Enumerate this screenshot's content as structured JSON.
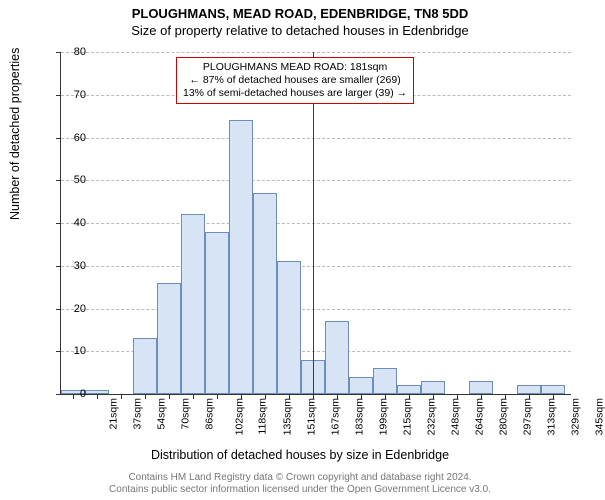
{
  "title_main": "PLOUGHMANS, MEAD ROAD, EDENBRIDGE, TN8 5DD",
  "title_sub": "Size of property relative to detached houses in Edenbridge",
  "y_axis_label": "Number of detached properties",
  "x_axis_label": "Distribution of detached houses by size in Edenbridge",
  "attribution_line1": "Contains HM Land Registry data © Crown copyright and database right 2024.",
  "attribution_line2": "Contains public sector information licensed under the Open Government Licence v3.0.",
  "annotation": {
    "line1": "PLOUGHMANS MEAD ROAD: 181sqm",
    "line2": "← 87% of detached houses are smaller (269)",
    "line3": "13% of semi-detached houses are larger (39) →",
    "border_color": "#cc0000"
  },
  "reference_line": {
    "x_value": 181,
    "color": "#cc0000"
  },
  "chart": {
    "type": "histogram",
    "x_min": 13,
    "x_max": 353,
    "y_min": 0,
    "y_max": 80,
    "y_tick_step": 10,
    "bar_fill": "#d6e4f5",
    "bar_border": "#6a8fbf",
    "grid_color": "#bbbbbb",
    "background_color": "#ffffff",
    "bin_width": 16,
    "bins": [
      {
        "start": 13,
        "label": "21sqm",
        "value": 1
      },
      {
        "start": 29,
        "label": "37sqm",
        "value": 1
      },
      {
        "start": 45,
        "label": "54sqm",
        "value": 0
      },
      {
        "start": 61,
        "label": "70sqm",
        "value": 13
      },
      {
        "start": 77,
        "label": "86sqm",
        "value": 26
      },
      {
        "start": 93,
        "label": "102sqm",
        "value": 42
      },
      {
        "start": 109,
        "label": "118sqm",
        "value": 38
      },
      {
        "start": 125,
        "label": "135sqm",
        "value": 64
      },
      {
        "start": 141,
        "label": "151sqm",
        "value": 47
      },
      {
        "start": 157,
        "label": "167sqm",
        "value": 31
      },
      {
        "start": 173,
        "label": "183sqm",
        "value": 8
      },
      {
        "start": 189,
        "label": "199sqm",
        "value": 17
      },
      {
        "start": 205,
        "label": "215sqm",
        "value": 4
      },
      {
        "start": 221,
        "label": "232sqm",
        "value": 6
      },
      {
        "start": 237,
        "label": "248sqm",
        "value": 2
      },
      {
        "start": 253,
        "label": "264sqm",
        "value": 3
      },
      {
        "start": 269,
        "label": "280sqm",
        "value": 0
      },
      {
        "start": 285,
        "label": "297sqm",
        "value": 3
      },
      {
        "start": 301,
        "label": "313sqm",
        "value": 0
      },
      {
        "start": 317,
        "label": "329sqm",
        "value": 2
      },
      {
        "start": 333,
        "label": "345sqm",
        "value": 2
      }
    ]
  }
}
